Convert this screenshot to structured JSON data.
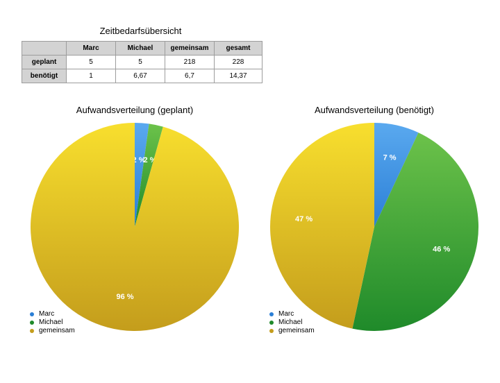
{
  "table": {
    "title": "Zeitbedarfsübersicht",
    "columns": [
      "",
      "Marc",
      "Michael",
      "gemeinsam",
      "gesamt"
    ],
    "rows": [
      {
        "label": "geplant",
        "values": [
          "5",
          "5",
          "218",
          "228"
        ]
      },
      {
        "label": "benötigt",
        "values": [
          "1",
          "6,67",
          "6,7",
          "14,37"
        ]
      }
    ]
  },
  "colors": {
    "Marc": [
      "#5aa9ef",
      "#2b7fd6"
    ],
    "Michael": [
      "#6cc24a",
      "#1f8a2a"
    ],
    "gemeinsam": [
      "#f8df2e",
      "#c49d1c"
    ]
  },
  "chart_data": [
    {
      "type": "pie",
      "title": "Aufwandsverteilung (geplant)",
      "categories": [
        "Marc",
        "Michael",
        "gemeinsam"
      ],
      "values": [
        5,
        5,
        218
      ],
      "labels": [
        "2 %",
        "2 %",
        "96 %"
      ],
      "legend": "bottom-left"
    },
    {
      "type": "pie",
      "title": "Aufwandsverteilung (benötigt)",
      "categories": [
        "Marc",
        "Michael",
        "gemeinsam"
      ],
      "values": [
        1,
        6.67,
        6.7
      ],
      "labels": [
        "7 %",
        "46 %",
        "47 %"
      ],
      "legend": "bottom-left"
    }
  ]
}
